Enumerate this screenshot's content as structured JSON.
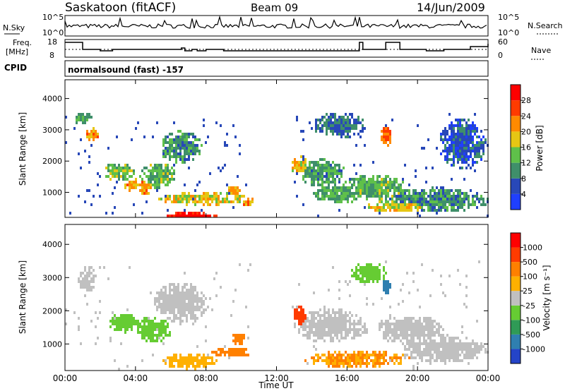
{
  "header": {
    "station": "Saskatoon (fitACF)",
    "beam": "Beam 09",
    "date": "14/Jun/2009"
  },
  "noise_panel": {
    "left_label": "N.Sky",
    "right_label": "N.Search",
    "left_ticks": [
      "10^5",
      "10^0"
    ],
    "right_ticks": [
      "10^5",
      "10^0"
    ]
  },
  "freq_panel": {
    "left_label_1": "Freq.",
    "left_label_2": "[MHz]",
    "right_label": "Nave",
    "left_ticks": [
      "18",
      "8"
    ],
    "right_ticks": [
      "60",
      "0"
    ]
  },
  "cpid_panel": {
    "label": "CPID",
    "text": "normalsound (fast) -157"
  },
  "chart_data": [
    {
      "type": "heatmap",
      "name": "power",
      "ylabel": "Slant Range [km]",
      "yticks": [
        1000,
        2000,
        3000,
        4000
      ],
      "ylim": [
        200,
        4600
      ],
      "xlim_hours": [
        0,
        24
      ],
      "colorbar_label": "Power [dB]",
      "colorbar_ticks": [
        "4",
        "8",
        "12",
        "16",
        "20",
        "24",
        "28"
      ],
      "colorbar_colors": [
        "#1f3fff",
        "#2848b8",
        "#3f8f6a",
        "#5fc04a",
        "#e6c614",
        "#ff8a00",
        "#ff3b00",
        "#ff0000"
      ],
      "blobs": [
        {
          "t": 1.5,
          "r": 2800,
          "rt": 0.4,
          "rr": 200,
          "v": 22
        },
        {
          "t": 1.0,
          "r": 3300,
          "rt": 0.5,
          "rr": 200,
          "v": 12
        },
        {
          "t": 3.0,
          "r": 1600,
          "rt": 0.9,
          "rr": 300,
          "v": 14
        },
        {
          "t": 3.8,
          "r": 1200,
          "rt": 0.5,
          "rr": 200,
          "v": 21
        },
        {
          "t": 4.5,
          "r": 1100,
          "rt": 0.4,
          "rr": 250,
          "v": 22
        },
        {
          "t": 5.2,
          "r": 1500,
          "rt": 1.0,
          "rr": 400,
          "v": 13
        },
        {
          "t": 6.5,
          "r": 2400,
          "rt": 1.2,
          "rr": 500,
          "v": 10
        },
        {
          "t": 7.0,
          "r": 200,
          "rt": 1.5,
          "rr": 120,
          "v": 30
        },
        {
          "t": 7.8,
          "r": 750,
          "rt": 2.5,
          "rr": 200,
          "v": 18
        },
        {
          "t": 9.5,
          "r": 1000,
          "rt": 0.4,
          "rr": 150,
          "v": 20
        },
        {
          "t": 10.3,
          "r": 650,
          "rt": 0.4,
          "rr": 150,
          "v": 22
        },
        {
          "t": 13.3,
          "r": 1800,
          "rt": 0.5,
          "rr": 300,
          "v": 18
        },
        {
          "t": 14.5,
          "r": 1600,
          "rt": 1.3,
          "rr": 450,
          "v": 11
        },
        {
          "t": 15.5,
          "r": 900,
          "rt": 1.5,
          "rr": 300,
          "v": 12
        },
        {
          "t": 18.2,
          "r": 2750,
          "rt": 0.35,
          "rr": 300,
          "v": 24
        },
        {
          "t": 17.5,
          "r": 1100,
          "rt": 1.8,
          "rr": 400,
          "v": 13
        },
        {
          "t": 19.0,
          "r": 500,
          "rt": 2.0,
          "rr": 200,
          "v": 18
        },
        {
          "t": 21.0,
          "r": 700,
          "rt": 3.0,
          "rr": 400,
          "v": 10
        },
        {
          "t": 22.5,
          "r": 2500,
          "rt": 1.3,
          "rr": 800,
          "v": 6
        },
        {
          "t": 15.5,
          "r": 3100,
          "rt": 1.5,
          "rr": 400,
          "v": 8
        }
      ]
    },
    {
      "type": "heatmap",
      "name": "velocity",
      "ylabel": "Slant Range [km]",
      "yticks": [
        1000,
        2000,
        3000,
        4000
      ],
      "ylim": [
        200,
        4600
      ],
      "xlim_hours": [
        0,
        24
      ],
      "xticks": [
        "00:00",
        "04:00",
        "08:00",
        "12:00",
        "16:00",
        "20:00",
        "00:00"
      ],
      "xlabel": "Time UT",
      "colorbar_label": "Velocity [m s⁻¹]",
      "colorbar_ticks": [
        "1000",
        "500",
        "100",
        "25",
        "-25",
        "-100",
        "-500",
        "-1000"
      ],
      "colorbar_colors": [
        "#2444c8",
        "#2f7fb0",
        "#2f9a56",
        "#66cc33",
        "#c0c0c0",
        "#ffb000",
        "#ff8000",
        "#ff3b00",
        "#ff0000"
      ],
      "blobs": [
        {
          "t": 1.2,
          "r": 2900,
          "rt": 0.5,
          "rr": 400,
          "v": 0
        },
        {
          "t": 3.3,
          "r": 1600,
          "rt": 0.9,
          "rr": 300,
          "v": 80
        },
        {
          "t": 5.0,
          "r": 1400,
          "rt": 1.0,
          "rr": 400,
          "v": 50
        },
        {
          "t": 6.5,
          "r": 2200,
          "rt": 1.5,
          "rr": 600,
          "v": 0
        },
        {
          "t": 7.0,
          "r": 450,
          "rt": 1.5,
          "rr": 250,
          "v": -80
        },
        {
          "t": 9.8,
          "r": 1100,
          "rt": 0.4,
          "rr": 200,
          "v": -300
        },
        {
          "t": 9.5,
          "r": 700,
          "rt": 1.2,
          "rr": 150,
          "v": -120
        },
        {
          "t": 13.3,
          "r": 1800,
          "rt": 0.4,
          "rr": 300,
          "v": -600
        },
        {
          "t": 15.0,
          "r": 1500,
          "rt": 2.0,
          "rr": 500,
          "v": 0
        },
        {
          "t": 16.5,
          "r": 500,
          "rt": 3.0,
          "rr": 250,
          "v": -100
        },
        {
          "t": 18.2,
          "r": 2700,
          "rt": 0.3,
          "rr": 250,
          "v": 900
        },
        {
          "t": 19.5,
          "r": 1400,
          "rt": 2.0,
          "rr": 400,
          "v": 0
        },
        {
          "t": 21.5,
          "r": 800,
          "rt": 2.5,
          "rr": 400,
          "v": 0
        },
        {
          "t": 17.2,
          "r": 3100,
          "rt": 1.0,
          "rr": 300,
          "v": 80
        }
      ]
    }
  ]
}
